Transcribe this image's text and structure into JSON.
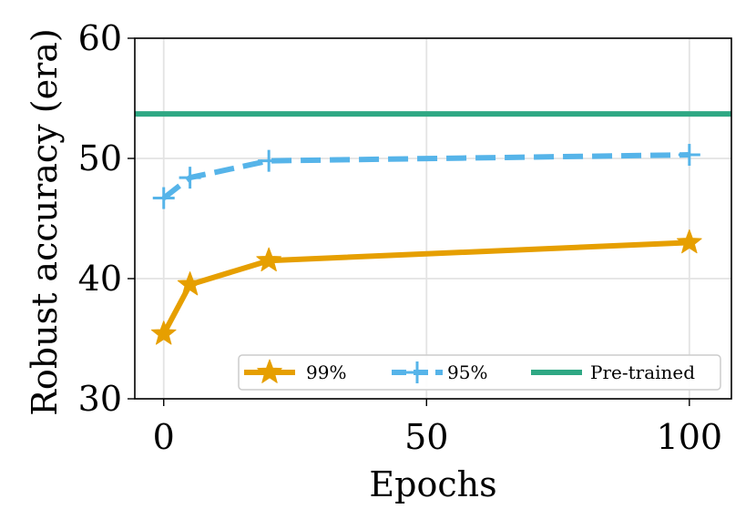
{
  "chart_data": {
    "type": "line",
    "title": "",
    "xlabel": "Epochs",
    "ylabel": "Robust accuracy (era)",
    "xlim": [
      -5.5,
      108
    ],
    "ylim": [
      30,
      60
    ],
    "xticks": [
      0,
      50,
      100
    ],
    "yticks": [
      30,
      40,
      50,
      60
    ],
    "xtick_labels": [
      "0",
      "50",
      "100"
    ],
    "ytick_labels": [
      "30",
      "40",
      "50",
      "60"
    ],
    "grid": true,
    "legend_position": "bottom-right",
    "series": [
      {
        "name": "99%",
        "x": [
          0,
          5,
          20,
          100
        ],
        "values": [
          35.4,
          39.5,
          41.5,
          43.0
        ],
        "color": "#E69F00",
        "line_style": "solid",
        "marker": "star"
      },
      {
        "name": "95%",
        "x": [
          0,
          5,
          20,
          100
        ],
        "values": [
          46.7,
          48.4,
          49.8,
          50.3
        ],
        "color": "#56B4E9",
        "line_style": "dashed",
        "marker": "plus"
      },
      {
        "name": "Pre-trained",
        "type": "hline",
        "value": 53.7,
        "color": "#2FA884",
        "line_style": "solid",
        "marker": "none"
      }
    ]
  }
}
